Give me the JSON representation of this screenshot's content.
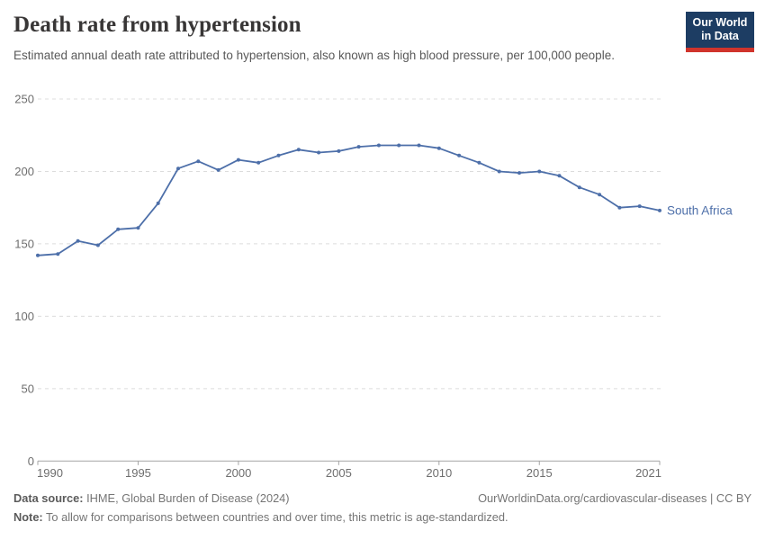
{
  "header": {
    "title": "Death rate from hypertension",
    "subtitle": "Estimated annual death rate attributed to hypertension, also known as high blood pressure, per 100,000 people.",
    "logo_line1": "Our World",
    "logo_line2": "in Data"
  },
  "chart_data": {
    "type": "line",
    "title": "Death rate from hypertension",
    "xlabel": "",
    "ylabel": "",
    "x": [
      1990,
      1991,
      1992,
      1993,
      1994,
      1995,
      1996,
      1997,
      1998,
      1999,
      2000,
      2001,
      2002,
      2003,
      2004,
      2005,
      2006,
      2007,
      2008,
      2009,
      2010,
      2011,
      2012,
      2013,
      2014,
      2015,
      2016,
      2017,
      2018,
      2019,
      2020,
      2021
    ],
    "series": [
      {
        "name": "South Africa",
        "color": "#4d6fa9",
        "values": [
          142,
          143,
          152,
          149,
          160,
          161,
          178,
          202,
          207,
          201,
          208,
          206,
          211,
          215,
          213,
          214,
          217,
          218,
          218,
          218,
          216,
          211,
          206,
          200,
          199,
          200,
          197,
          189,
          184,
          175,
          176,
          173
        ]
      }
    ],
    "x_ticks": [
      1990,
      1995,
      2000,
      2005,
      2010,
      2015,
      2021
    ],
    "y_ticks": [
      0,
      50,
      100,
      150,
      200,
      250
    ],
    "xlim": [
      1990,
      2021
    ],
    "ylim": [
      0,
      250
    ],
    "grid": "horizontal-dashed",
    "legend_position": "end-of-line-label"
  },
  "colors": {
    "line": "#4d6fa9",
    "grid": "#dcdcdc",
    "axis": "#a5a5a5",
    "tick_label": "#6e6e6e",
    "logo_bg": "#1d3d63",
    "logo_red": "#d0342c"
  },
  "footer": {
    "source_label": "Data source:",
    "source_text": " IHME, Global Burden of Disease (2024)",
    "link_text": "OurWorldinData.org/cardiovascular-diseases | CC BY",
    "note_label": "Note:",
    "note_text": " To allow for comparisons between countries and over time, this metric is age-standardized."
  }
}
